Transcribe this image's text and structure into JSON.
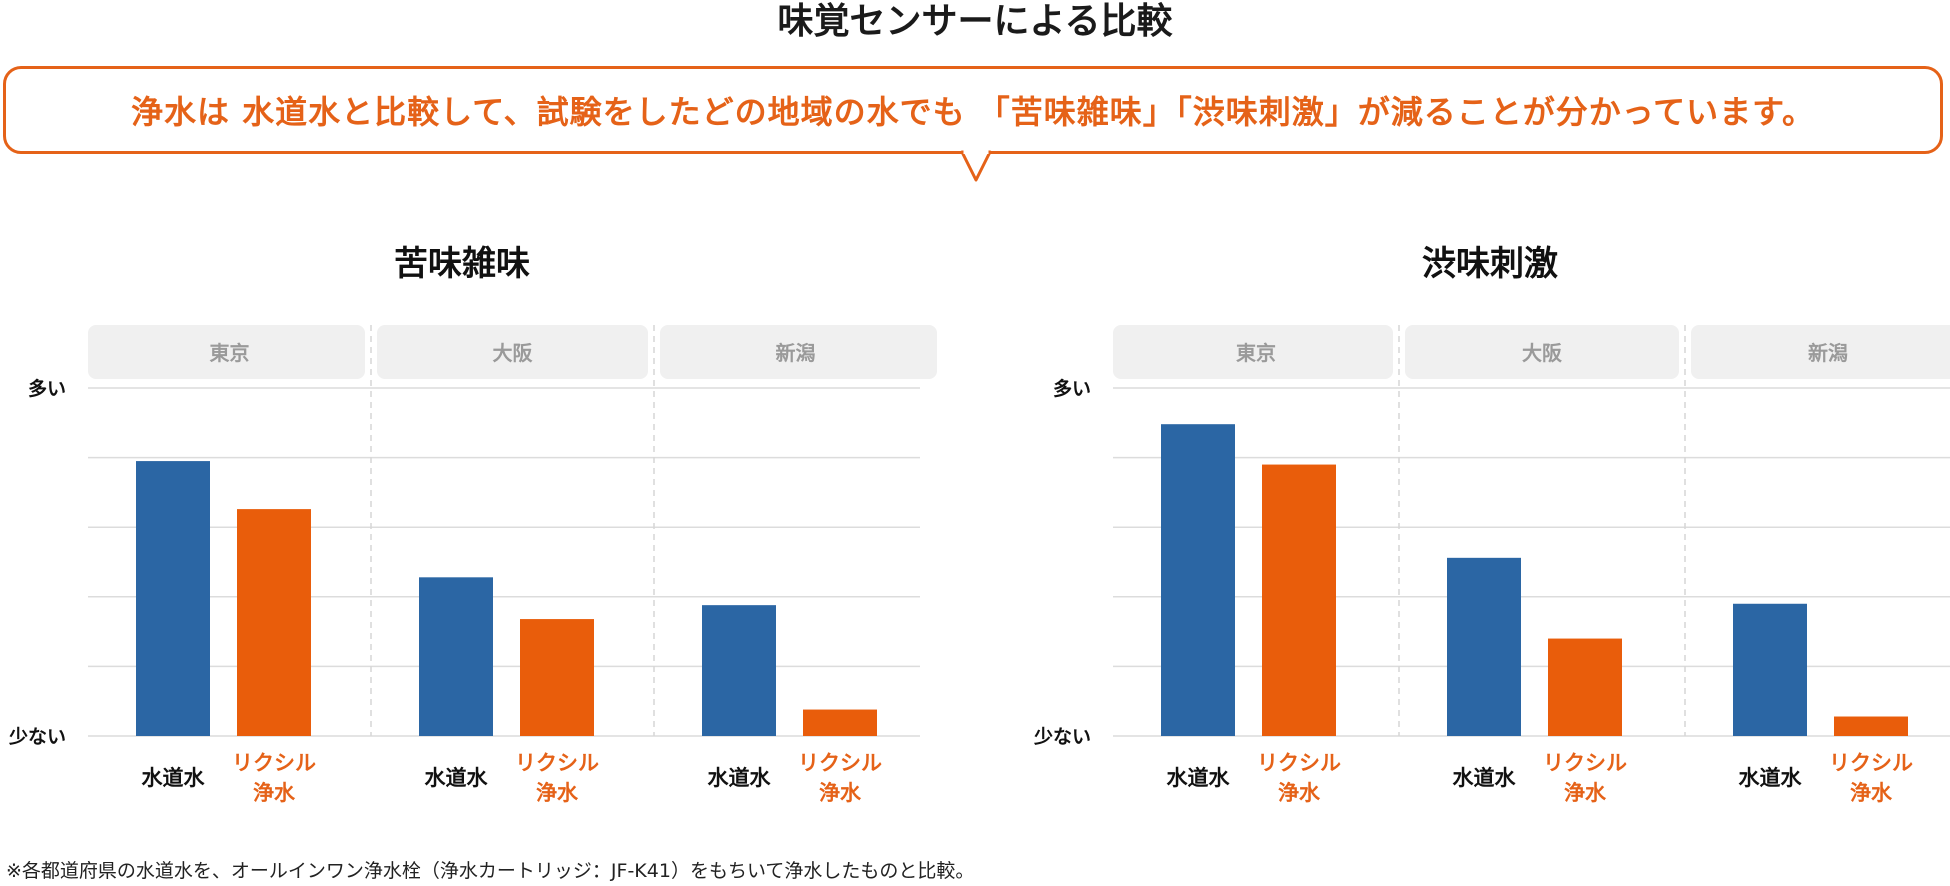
{
  "header": {
    "title": "味覚センサーによる比較",
    "callout": "浄水は 水道水と比較して、試験をしたどの地域の水でも 「苦味雑味」「渋味刺激」が減ることが分かっています。"
  },
  "footnote": "※各都道府県の水道水を、オールインワン浄水栓（浄水カートリッジ：JF-K41）をもちいて浄水したものと比較。",
  "colors": {
    "tap": "#2b66a4",
    "lixil": "#e95d0b",
    "accent": "#e56218",
    "panel": "#f0f0f0"
  },
  "chart_data": [
    {
      "type": "bar",
      "title": "苦味雑味",
      "categories": [
        "東京",
        "大阪",
        "新潟"
      ],
      "ylabel_top": "多い",
      "ylabel_bottom": "少ない",
      "ylim": [
        0,
        5
      ],
      "series": [
        {
          "name": "水道水",
          "values": [
            3.95,
            2.28,
            1.88
          ]
        },
        {
          "name": "リクシル浄水",
          "values": [
            3.26,
            1.68,
            0.38
          ]
        }
      ]
    },
    {
      "type": "bar",
      "title": "渋味刺激",
      "categories": [
        "東京",
        "大阪",
        "新潟"
      ],
      "ylabel_top": "多い",
      "ylabel_bottom": "少ない",
      "ylim": [
        0,
        5
      ],
      "series": [
        {
          "name": "水道水",
          "values": [
            4.48,
            2.56,
            1.9
          ]
        },
        {
          "name": "リクシル浄水",
          "values": [
            3.9,
            1.4,
            0.28
          ]
        }
      ]
    }
  ]
}
